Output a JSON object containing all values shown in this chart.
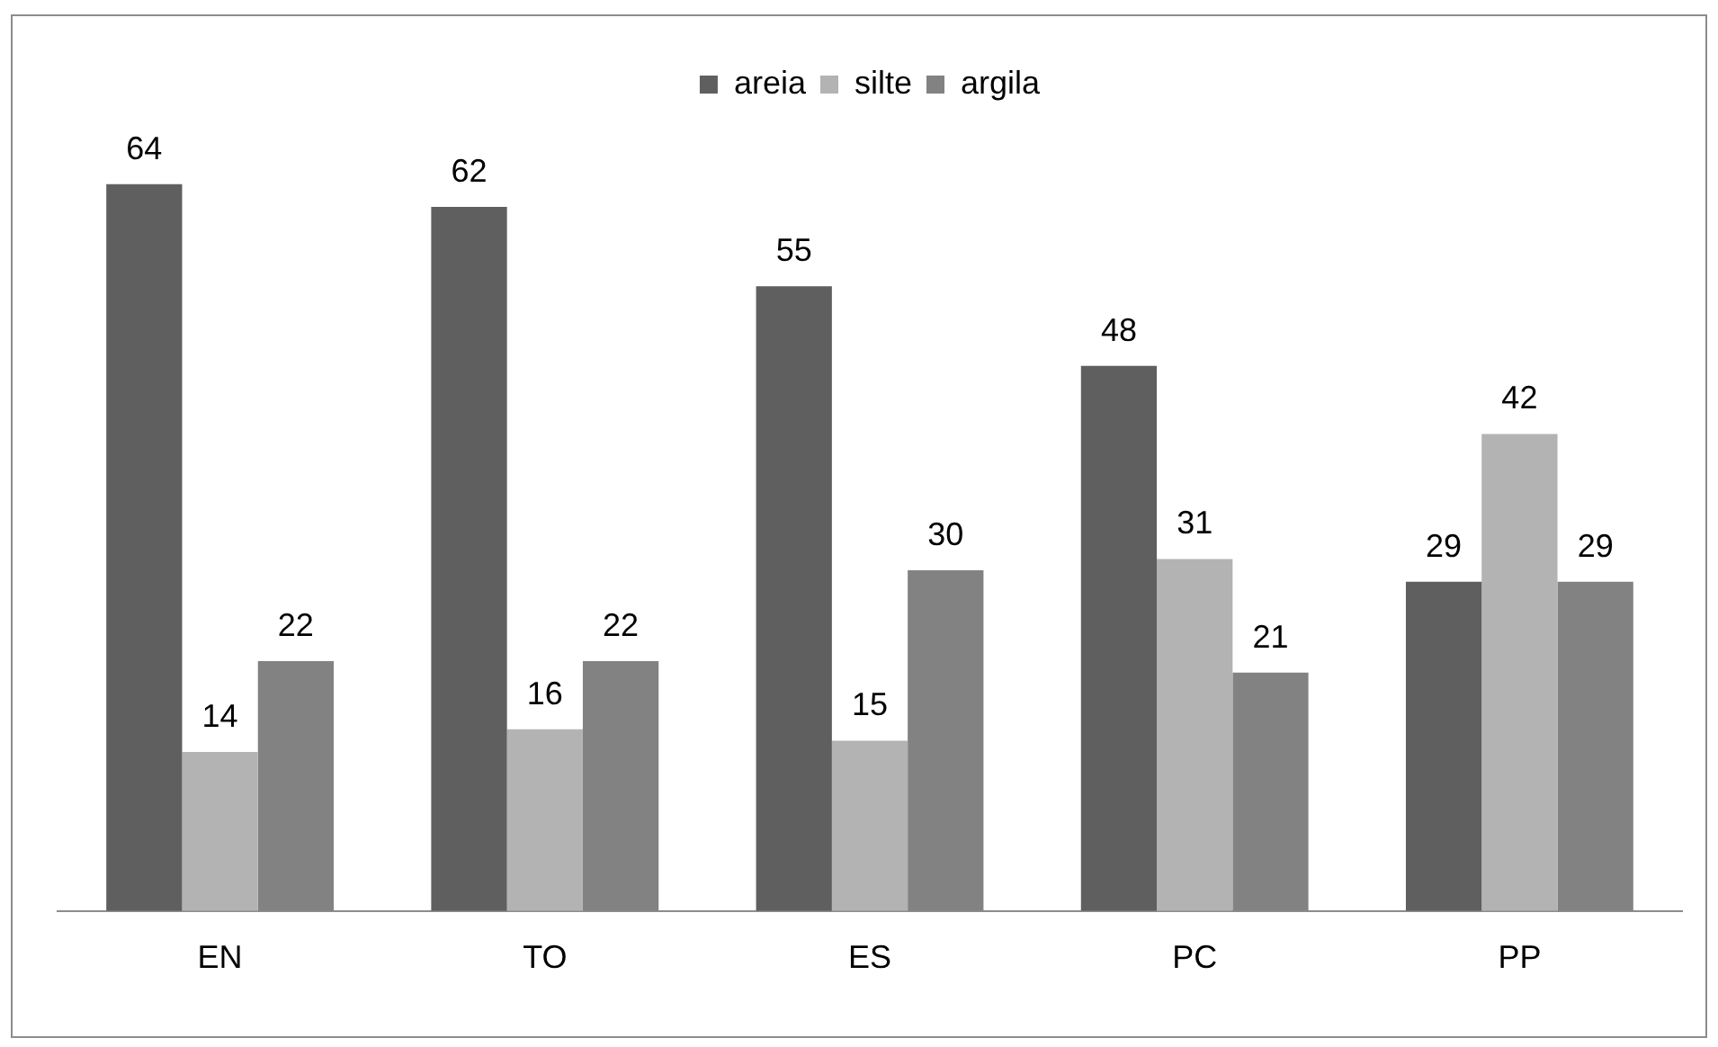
{
  "chart_data": {
    "type": "bar",
    "categories": [
      "EN",
      "TO",
      "ES",
      "PC",
      "PP"
    ],
    "series": [
      {
        "name": "areia",
        "color": "#5f5f5f",
        "values": [
          64,
          62,
          55,
          48,
          29
        ]
      },
      {
        "name": "silte",
        "color": "#b3b3b3",
        "values": [
          14,
          16,
          15,
          31,
          42
        ]
      },
      {
        "name": "argila",
        "color": "#828282",
        "values": [
          22,
          22,
          30,
          21,
          29
        ]
      }
    ],
    "data_labels": true,
    "legend": "top",
    "grid": false
  }
}
